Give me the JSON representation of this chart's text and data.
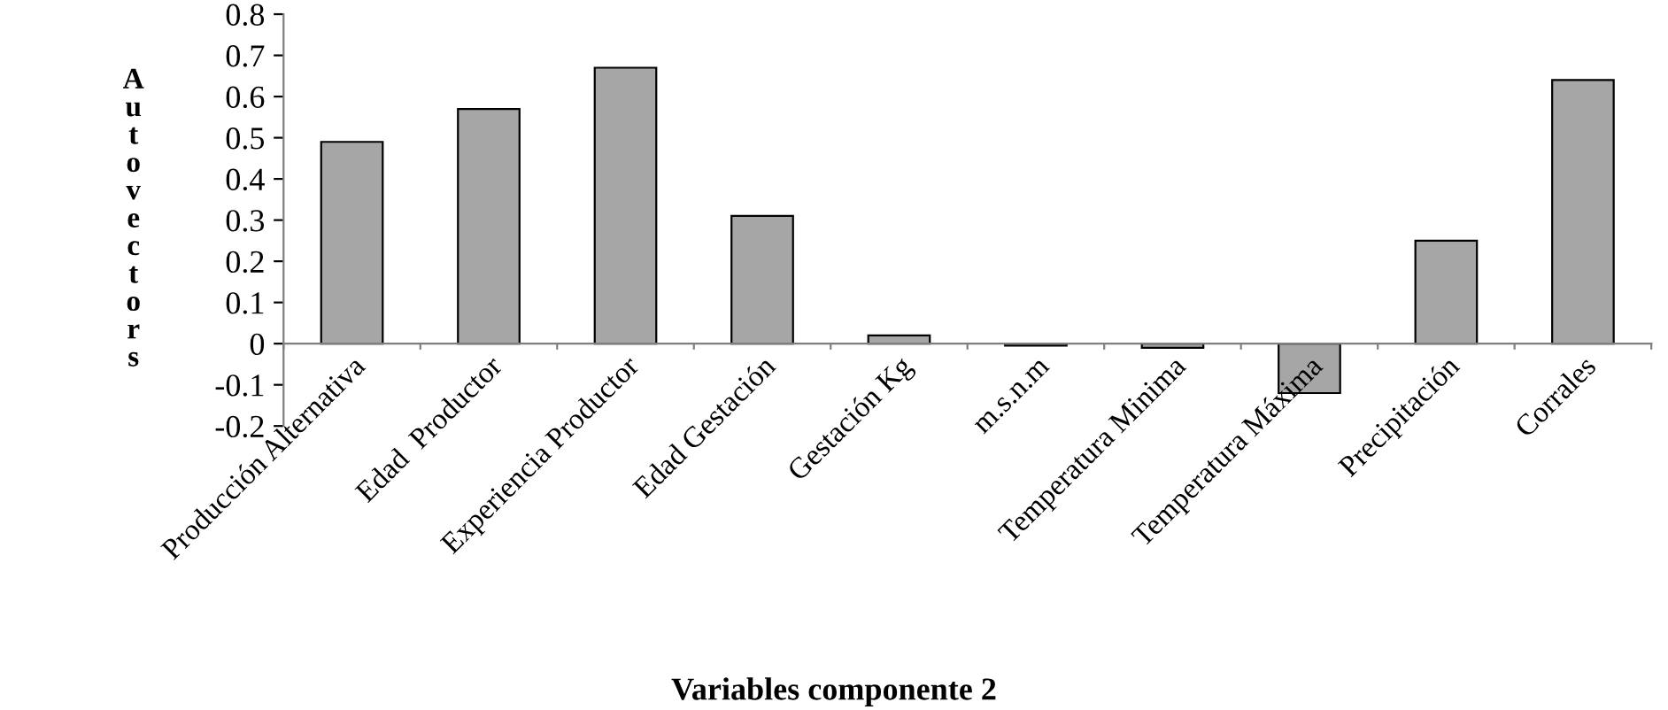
{
  "chart_data": {
    "type": "bar",
    "xlabel": "Variables componente 2",
    "ylabel": "Autovectors",
    "categories": [
      "Producción Alternativa",
      "Edad  Productor",
      "Experiencia Productor",
      "Edad Gestación",
      "Gestación Kg",
      "m.s.n.m",
      "Temperatura Minima",
      "Temperatura Máxima",
      "Precipitación",
      "Corrales"
    ],
    "values": [
      0.49,
      0.57,
      0.67,
      0.31,
      0.02,
      -0.005,
      -0.01,
      -0.12,
      0.25,
      0.64
    ],
    "color": "#a6a6a6",
    "ylim": [
      -0.2,
      0.8
    ],
    "yticks": [
      -0.2,
      -0.1,
      0,
      0.1,
      0.2,
      0.3,
      0.4,
      0.5,
      0.6,
      0.7,
      0.8
    ],
    "grid": false,
    "legend": false
  }
}
